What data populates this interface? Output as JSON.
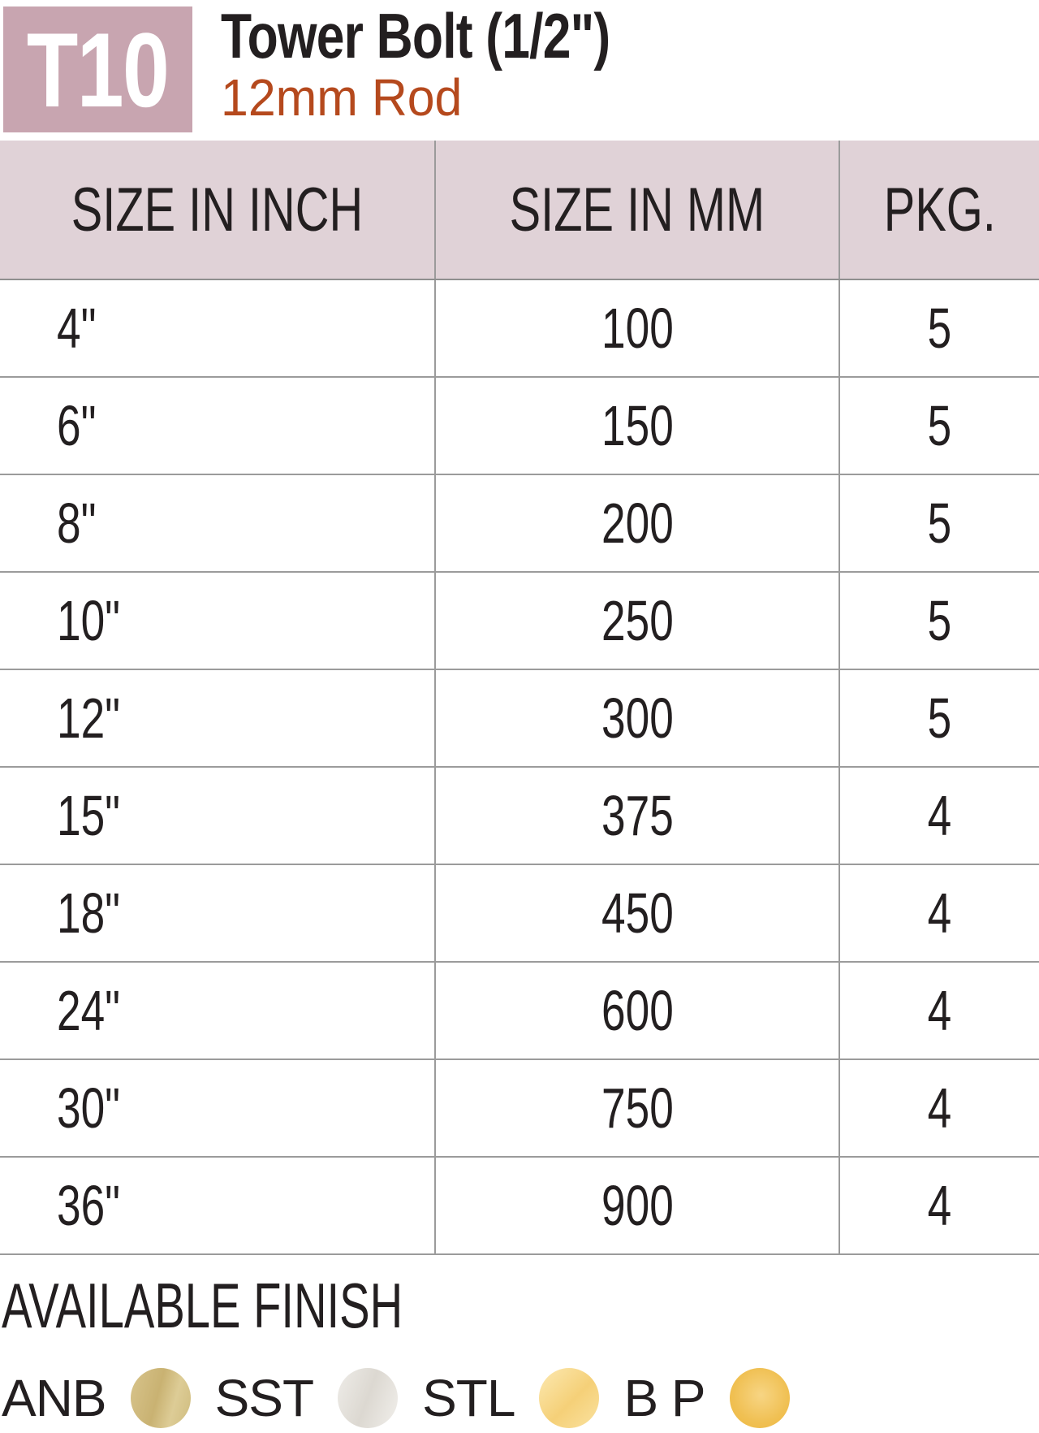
{
  "header": {
    "code": "T10",
    "title": "Tower Bolt (1/2\")",
    "subtitle": "12mm Rod"
  },
  "table": {
    "columns": [
      "SIZE IN INCH",
      "SIZE IN MM",
      "PKG."
    ],
    "rows": [
      {
        "inch": "4\"",
        "mm": "100",
        "pkg": "5"
      },
      {
        "inch": "6\"",
        "mm": "150",
        "pkg": "5"
      },
      {
        "inch": "8\"",
        "mm": "200",
        "pkg": "5"
      },
      {
        "inch": "10\"",
        "mm": "250",
        "pkg": "5"
      },
      {
        "inch": "12\"",
        "mm": "300",
        "pkg": "5"
      },
      {
        "inch": "15\"",
        "mm": "375",
        "pkg": "4"
      },
      {
        "inch": "18\"",
        "mm": "450",
        "pkg": "4"
      },
      {
        "inch": "24\"",
        "mm": "600",
        "pkg": "4"
      },
      {
        "inch": "30\"",
        "mm": "750",
        "pkg": "4"
      },
      {
        "inch": "36\"",
        "mm": "900",
        "pkg": "4"
      }
    ]
  },
  "finish": {
    "title": "AVAILABLE FINISH",
    "options": [
      {
        "label": "ANB",
        "swatch": "antique-brass-swatch",
        "color": "#d2bf83"
      },
      {
        "label": "SST",
        "swatch": "stainless-swatch",
        "color": "#e6e3de"
      },
      {
        "label": "STL",
        "swatch": "satin-gold-swatch",
        "color": "#f8d98c"
      },
      {
        "label": "B P",
        "swatch": "polished-brass-swatch",
        "color": "#f1c255"
      }
    ]
  },
  "colors": {
    "badge_bg": "#c8a5b0",
    "table_header_bg": "#e0d2d7",
    "subtitle_text": "#b5491d",
    "body_text": "#231f20",
    "grid_line": "#9b9b9b"
  }
}
